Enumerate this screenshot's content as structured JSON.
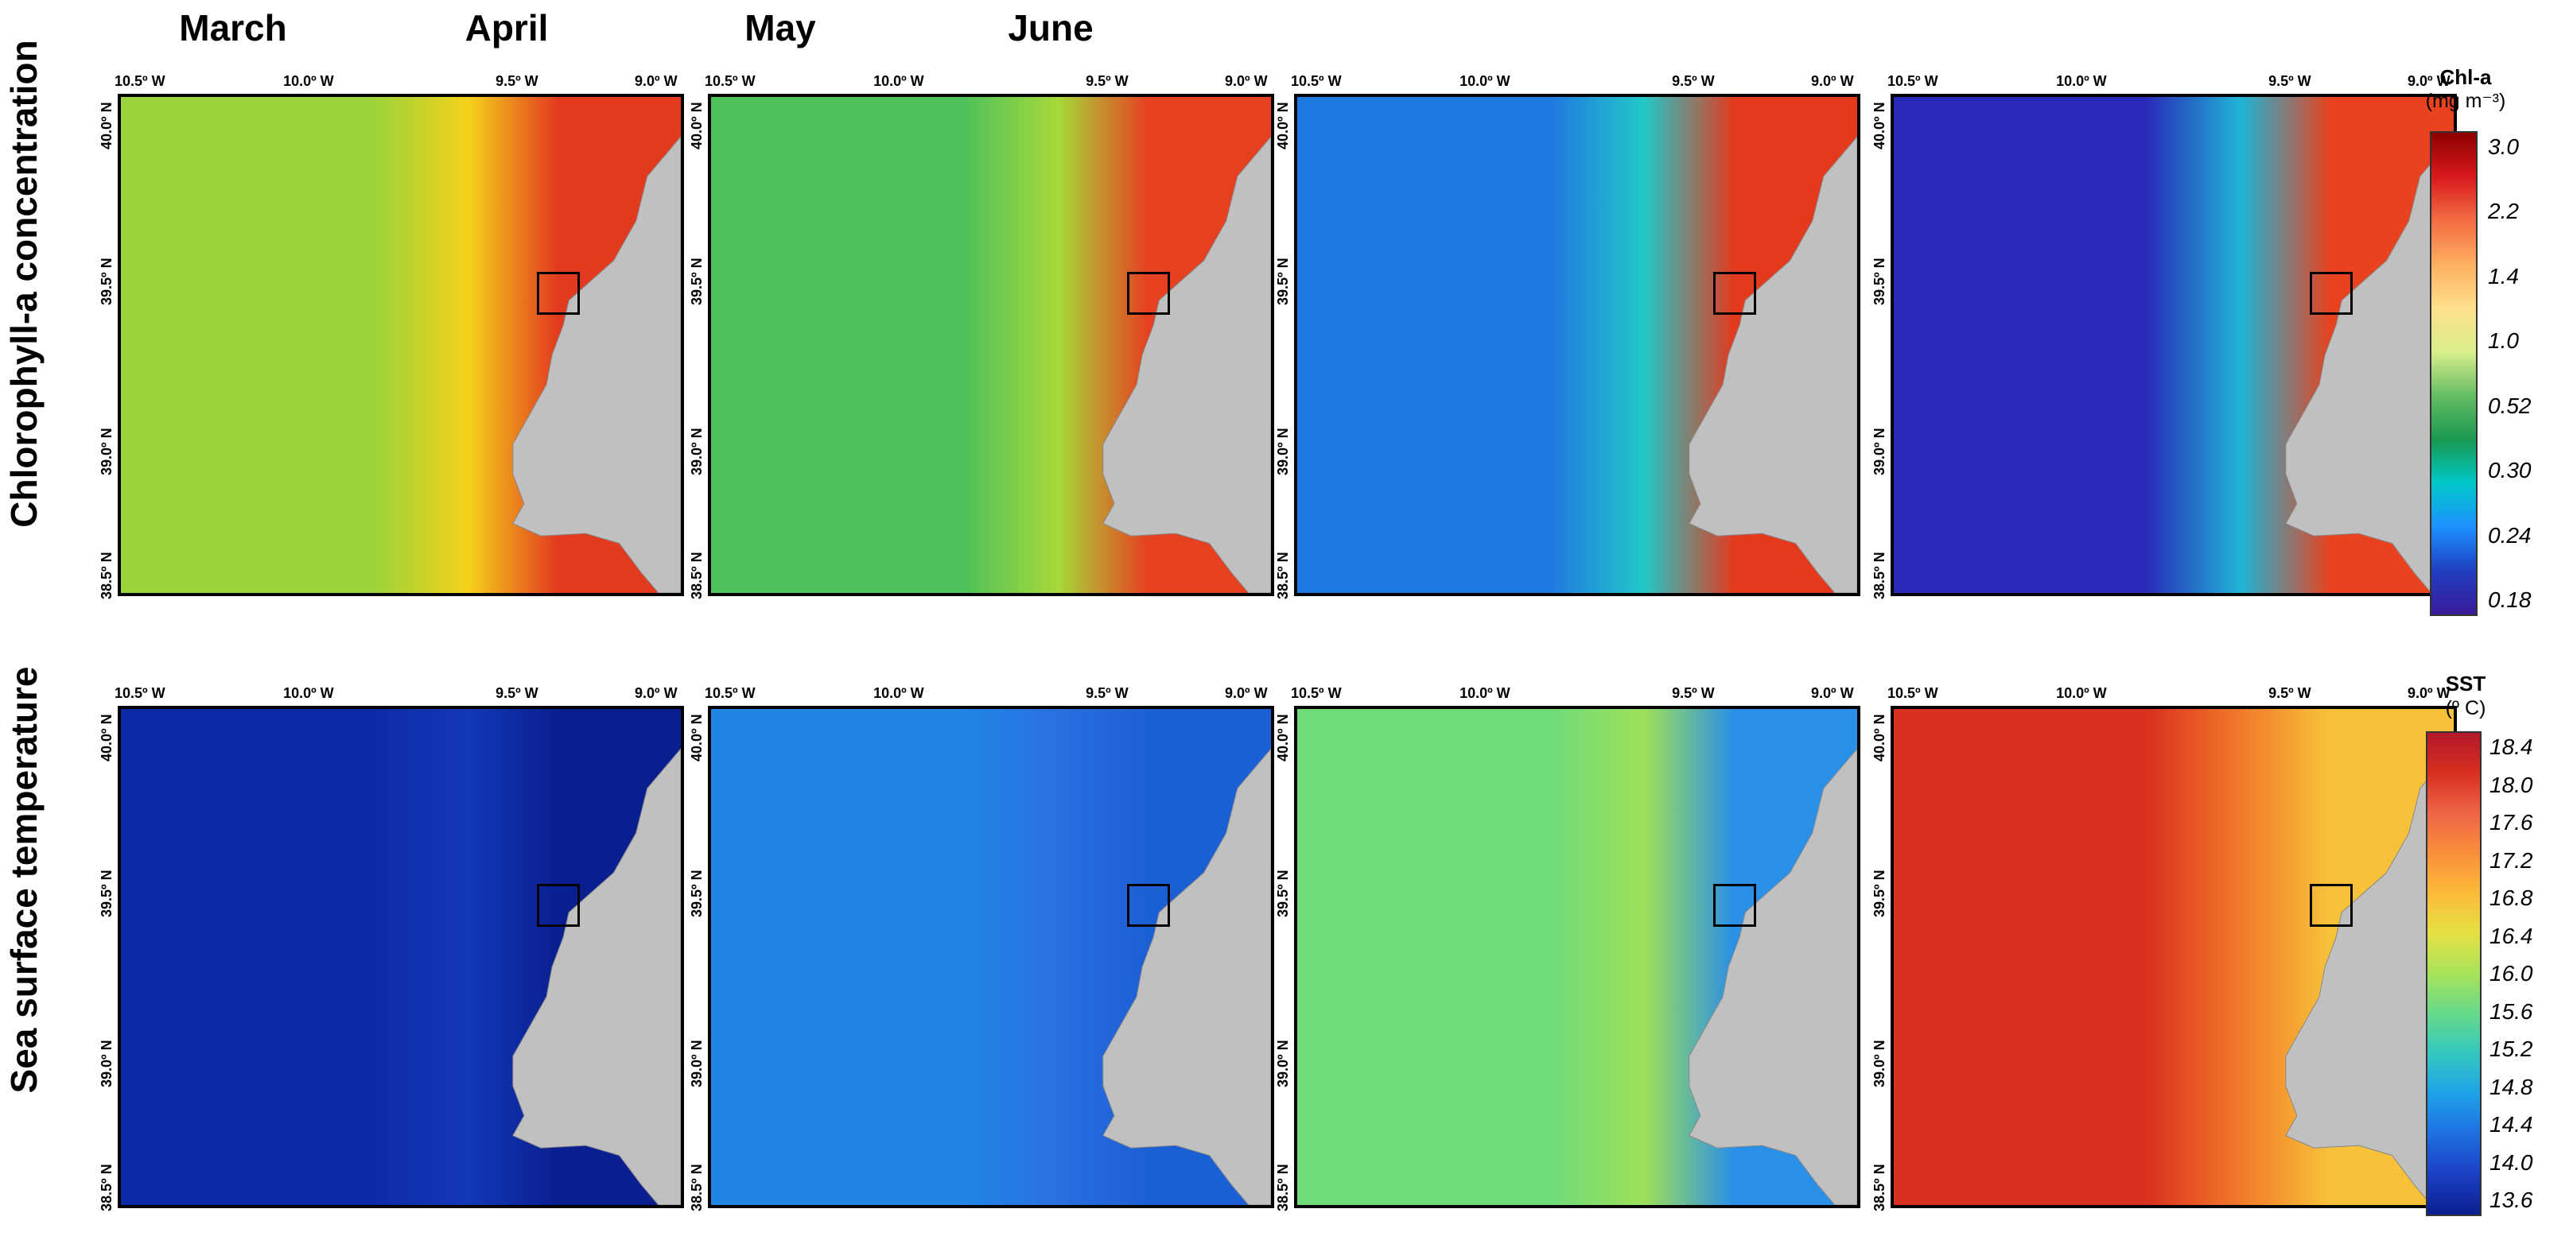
{
  "months": [
    "March",
    "April",
    "May",
    "June"
  ],
  "rows": [
    "Chlorophyll-a concentration",
    "Sea surface temperature"
  ],
  "lon_labels": [
    "10.5º W",
    "10.0º W",
    "9.5º W",
    "9.0º W"
  ],
  "lat_labels": [
    "40.0º N",
    "39.5º N",
    "39.0º N",
    "38.5º N"
  ],
  "chl_colorbar": {
    "title": "Chl-a",
    "unit": "(mg m⁻³)",
    "ticks": [
      "3.0",
      "2.2",
      "1.4",
      "1.0",
      "0.52",
      "0.30",
      "0.24",
      "0.18"
    ],
    "colors": [
      "#8b0000",
      "#d7191c",
      "#f46d43",
      "#fdae61",
      "#fee08b",
      "#d9ef8b",
      "#66bd63",
      "#1a9850",
      "#00c8c8",
      "#1e90ff",
      "#1f3fbf",
      "#3a1a9a"
    ]
  },
  "sst_colorbar": {
    "title": "SST",
    "unit": "(º C)",
    "ticks": [
      "18.4",
      "18.0",
      "17.6",
      "17.2",
      "16.8",
      "16.4",
      "16.0",
      "15.6",
      "15.2",
      "14.8",
      "14.4",
      "14.0",
      "13.6"
    ],
    "colors": [
      "#b2182b",
      "#d7301f",
      "#ef6548",
      "#f98f3a",
      "#fdbb3a",
      "#e5e043",
      "#a8e25b",
      "#66d98b",
      "#33c7c0",
      "#1fa1e8",
      "#1f6fe0",
      "#1b3fc2",
      "#0a1f8f"
    ]
  },
  "panel_colors": {
    "chl": {
      "March": {
        "offshore": "#9ad33a",
        "mid": "#f5d21c",
        "coast": "#e23a1e"
      },
      "April": {
        "offshore": "#4ec15a",
        "mid": "#a7d93a",
        "coast": "#e54020"
      },
      "May": {
        "offshore": "#1f78e0",
        "mid": "#23c8c8",
        "coast": "#e33a1e"
      },
      "June": {
        "offshore": "#2a2ab8",
        "mid": "#1fb5d6",
        "coast": "#e8421e"
      }
    },
    "sst": {
      "March": {
        "offshore": "#0f2aa6",
        "mid": "#1238b8",
        "coast": "#0a1f8f"
      },
      "April": {
        "offshore": "#1f86e6",
        "mid": "#2a6fe0",
        "coast": "#1b5fd4"
      },
      "May": {
        "offshore": "#6fdc7a",
        "mid": "#9ee05a",
        "coast": "#2a8fe6"
      },
      "June": {
        "offshore": "#d9301f",
        "mid": "#f27a2a",
        "coast": "#f7c23a"
      }
    }
  },
  "land_color": "#c0c0c0"
}
